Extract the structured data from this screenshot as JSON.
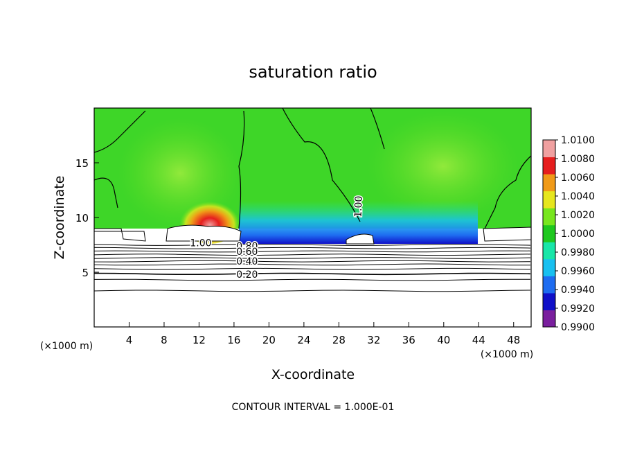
{
  "chart_data": {
    "type": "heatmap",
    "title": "saturation ratio",
    "xlabel": "X-coordinate",
    "ylabel": "Z-coordinate",
    "x_unit": "(×1000 m)",
    "y_unit": "(×1000 m)",
    "footer": "CONTOUR INTERVAL = 1.000E-01",
    "xlim": [
      0,
      50
    ],
    "ylim": [
      0,
      20
    ],
    "x_ticks": [
      4,
      8,
      12,
      16,
      20,
      24,
      28,
      32,
      36,
      40,
      44,
      48
    ],
    "y_ticks": [
      5,
      10,
      15
    ],
    "colorbar": {
      "range": [
        0.99,
        1.01
      ],
      "ticks": [
        "1.0100",
        "1.0080",
        "1.0060",
        "1.0040",
        "1.0020",
        "1.0000",
        "0.9980",
        "0.9960",
        "0.9940",
        "0.9920",
        "0.9900"
      ],
      "colors": [
        "#7a1f9e",
        "#1010c8",
        "#1e6cf0",
        "#18c0f0",
        "#18e6a8",
        "#1ec81e",
        "#78e61e",
        "#e6e61e",
        "#f09a18",
        "#e61e1e",
        "#f0a0a0"
      ]
    },
    "contour_labels": [
      {
        "text": "1.00",
        "x": 30.2,
        "z": 11.0
      },
      {
        "text": "1.00",
        "x": 12.2,
        "z": 7.7
      },
      {
        "text": "0.80",
        "x": 17.5,
        "z": 7.4
      },
      {
        "text": "0.60",
        "x": 17.5,
        "z": 6.9
      },
      {
        "text": "0.40",
        "x": 17.5,
        "z": 6.0
      },
      {
        "text": "0.20",
        "x": 17.5,
        "z": 4.8
      }
    ],
    "contour_levels_z": [
      3.3,
      4.3,
      4.85,
      5.3,
      5.7,
      6.0,
      6.3,
      6.6,
      6.9,
      7.2,
      7.5
    ]
  }
}
